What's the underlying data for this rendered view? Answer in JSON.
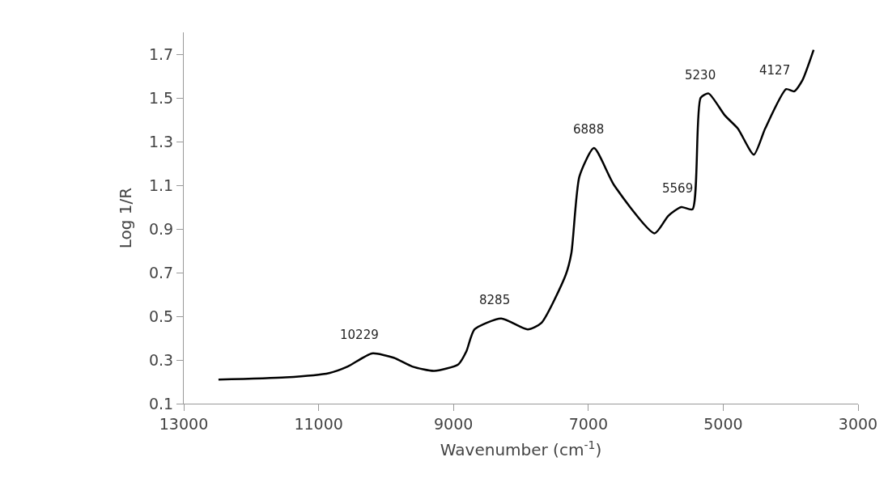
{
  "chart_data": {
    "type": "line",
    "xlabel": "Wavenumber (cm$^{-1}$)",
    "ylabel": "Log 1/R",
    "xlim": [
      13000,
      3000
    ],
    "xticks": [
      13000,
      11000,
      9000,
      7000,
      5000,
      3000
    ],
    "ylim": [
      0.1,
      1.8
    ],
    "yticks": [
      0.1,
      0.3,
      0.5,
      0.7,
      0.9,
      1.1,
      1.3,
      1.5,
      1.7
    ],
    "marker": "none",
    "line_style": "solid",
    "series": [
      {
        "color": "#000000",
        "x": [
          12485,
          11491,
          10844,
          10569,
          10210,
          9886,
          9611,
          9287,
          8928,
          8808,
          8688,
          8293,
          7898,
          7695,
          7335,
          7251,
          7132,
          6916,
          6617,
          6018,
          5814,
          5623,
          5455,
          5335,
          5216,
          4976,
          4784,
          4545,
          4377,
          4066,
          3946,
          3826,
          3659
        ],
        "values": [
          0.21,
          0.22,
          0.24,
          0.27,
          0.33,
          0.31,
          0.27,
          0.25,
          0.28,
          0.34,
          0.44,
          0.49,
          0.44,
          0.47,
          0.69,
          0.79,
          1.14,
          1.27,
          1.1,
          0.88,
          0.96,
          1.0,
          0.99,
          1.5,
          1.52,
          1.42,
          1.36,
          1.24,
          1.36,
          1.54,
          1.53,
          1.58,
          1.72
        ]
      }
    ],
    "annotations": [
      {
        "text": "10229",
        "x": 10229,
        "y": 0.33
      },
      {
        "text": "8285",
        "x": 8285,
        "y": 0.49
      },
      {
        "text": "6888",
        "x": 6888,
        "y": 1.27
      },
      {
        "text": "5569",
        "x": 5569,
        "y": 1.0
      },
      {
        "text": "5230",
        "x": 5230,
        "y": 1.52
      },
      {
        "text": "4127",
        "x": 4127,
        "y": 1.54
      }
    ]
  }
}
